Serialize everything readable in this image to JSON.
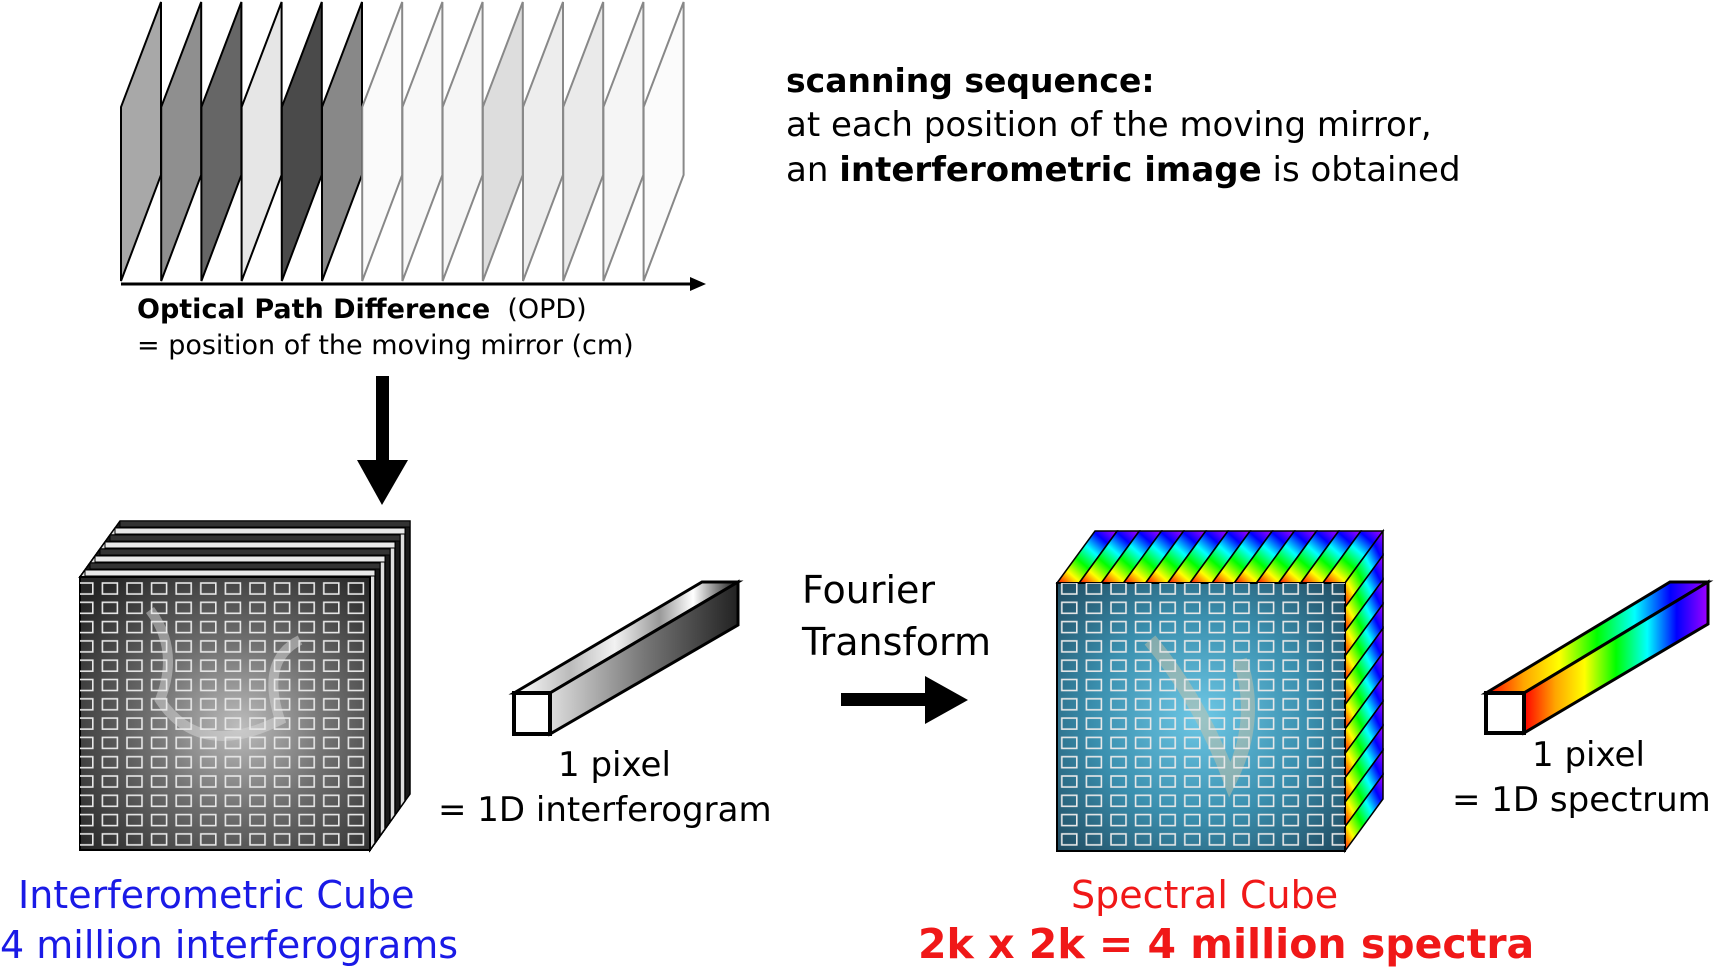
{
  "scanning": {
    "title": "scanning sequence:",
    "line1": "at each position of the moving mirror,",
    "line2_pre": "an ",
    "line2_bold": "interferometric image",
    "line2_post": " is obtained"
  },
  "opd": {
    "label_bold": "Optical Path Difference",
    "label_abbr": "  (OPD)",
    "subtitle": "= position of the moving mirror (cm)"
  },
  "interferogram_pixel": {
    "line1": "1 pixel",
    "line2": "= 1D interferogram"
  },
  "fourier": {
    "line1": "Fourier",
    "line2": "Transform"
  },
  "spectrum_pixel": {
    "line1": "1 pixel",
    "line2": "= 1D spectrum"
  },
  "interferometric_cube": {
    "line1": "Interferometric Cube",
    "line2": "4 million interferograms",
    "color": "#1a1ae6"
  },
  "spectral_cube": {
    "line1": "Spectral Cube",
    "line2": "2k x 2k = 4 million spectra",
    "color": "#f01818"
  },
  "frames": {
    "opaque_grays": [
      "#a8a8a8",
      "#8f8f8f",
      "#666666",
      "#e6e6e6",
      "#4a4a4a",
      "#888888"
    ],
    "faded_grays": [
      "#f4f4f4",
      "#f0f0f0",
      "#ececec",
      "#b4b4b4",
      "#d6d6d6",
      "#d0d0d0",
      "#e8e8e8",
      "#f6f6f6"
    ]
  },
  "icons": {
    "down_arrow": "down-arrow-icon",
    "right_arrow": "right-arrow-icon"
  }
}
